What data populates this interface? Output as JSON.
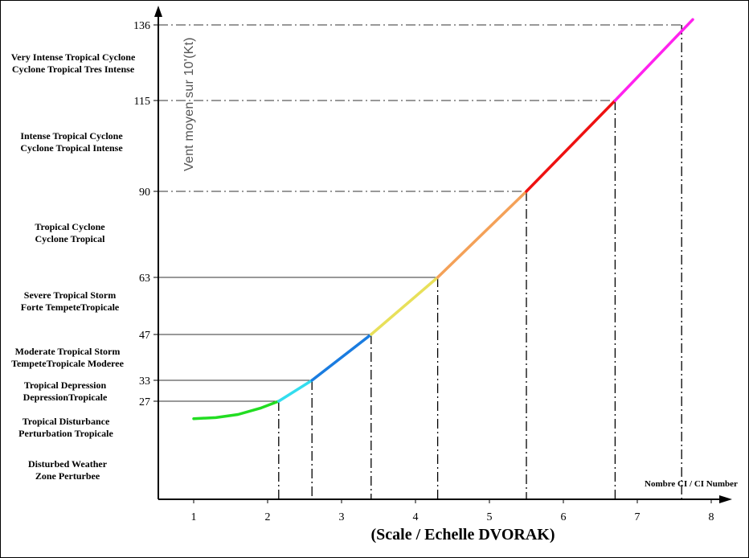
{
  "chart_data": {
    "type": "line",
    "xlabel": "(Scale  /  Echelle DVORAK)",
    "ylabel": "Vent moyen sur 10'(Kt)",
    "x_axis_note": "Nombre CI / CI Number",
    "xlim": [
      0.6,
      8.2
    ],
    "x_ticks": [
      1,
      2,
      3,
      4,
      5,
      6,
      7,
      8
    ],
    "y_ticks": [
      27,
      33,
      47,
      63,
      90,
      115,
      136
    ],
    "reference_lines": [
      {
        "ci": 2.15,
        "wind": 27,
        "style": "solid"
      },
      {
        "ci": 2.6,
        "wind": 33,
        "style": "solid"
      },
      {
        "ci": 3.4,
        "wind": 47,
        "style": "solid"
      },
      {
        "ci": 4.3,
        "wind": 63,
        "style": "solid"
      },
      {
        "ci": 5.5,
        "wind": 90,
        "style": "dashdot"
      },
      {
        "ci": 6.7,
        "wind": 115,
        "style": "dashdot"
      },
      {
        "ci": 7.6,
        "wind": 136,
        "style": "dashdot"
      }
    ],
    "segments": [
      {
        "color": "#22dd22",
        "points": [
          [
            1.0,
            22
          ],
          [
            1.3,
            22.3
          ],
          [
            1.6,
            23.2
          ],
          [
            1.9,
            25.0
          ],
          [
            2.15,
            27
          ]
        ]
      },
      {
        "color": "#33ddee",
        "points": [
          [
            2.15,
            27
          ],
          [
            2.6,
            33
          ]
        ]
      },
      {
        "color": "#1a7ce0",
        "points": [
          [
            2.6,
            33
          ],
          [
            3.4,
            47
          ]
        ]
      },
      {
        "color": "#e8e05a",
        "points": [
          [
            3.4,
            47
          ],
          [
            4.3,
            63
          ]
        ]
      },
      {
        "color": "#f4a158",
        "points": [
          [
            4.3,
            63
          ],
          [
            5.5,
            90
          ]
        ]
      },
      {
        "color": "#ee1111",
        "points": [
          [
            5.5,
            90
          ],
          [
            6.7,
            115
          ]
        ]
      },
      {
        "color": "#ff22ee",
        "points": [
          [
            6.7,
            115
          ],
          [
            7.75,
            137.5
          ]
        ]
      }
    ]
  },
  "categories": [
    {
      "line1": "Very Intense Tropical Cyclone",
      "line2": "Cyclone Tropical Tres Intense"
    },
    {
      "line1": "Intense Tropical Cyclone",
      "line2": "Cyclone Tropical Intense"
    },
    {
      "line1": "Tropical Cyclone",
      "line2": "Cyclone Tropical"
    },
    {
      "line1": "Severe Tropical Storm",
      "line2": "Forte TempeteTropicale"
    },
    {
      "line1": "Moderate Tropical Storm",
      "line2": "TempeteTropicale Moderee"
    },
    {
      "line1": "Tropical Depression",
      "line2": "DepressionTropicale"
    },
    {
      "line1": "Tropical Disturbance",
      "line2": "Perturbation Tropicale"
    },
    {
      "line1": "Disturbed Weather",
      "line2": "Zone Perturbee"
    }
  ]
}
